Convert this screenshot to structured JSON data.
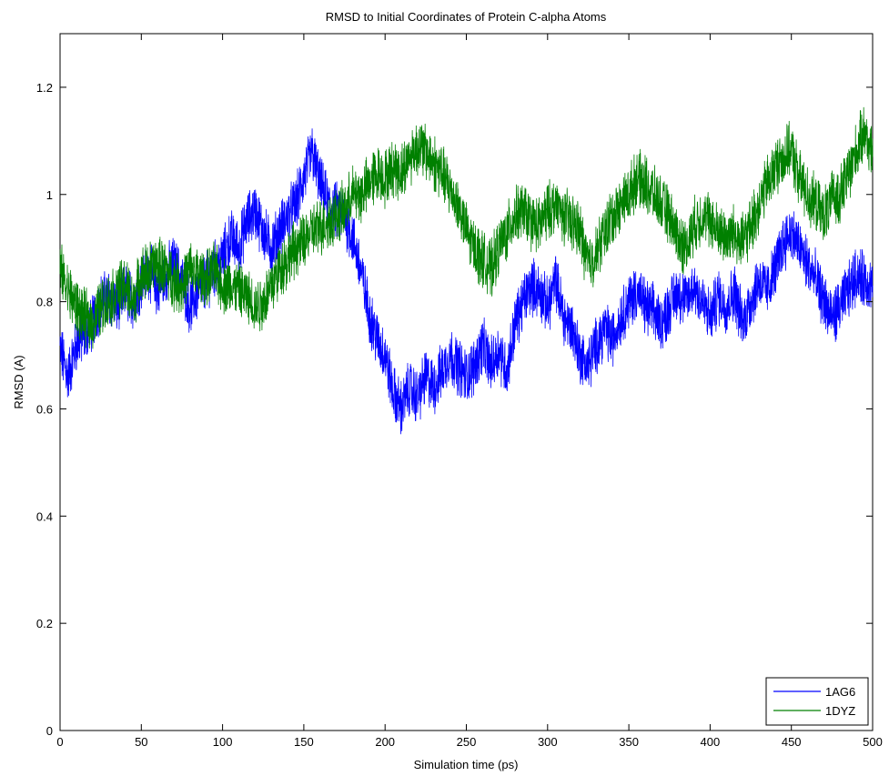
{
  "chart_data": {
    "type": "line",
    "title": "RMSD to Initial Coordinates of Protein C-alpha Atoms",
    "xlabel": "Simulation time (ps)",
    "ylabel": "RMSD (A)",
    "xlim": [
      0,
      500
    ],
    "ylim": [
      0,
      1.3
    ],
    "xticks": [
      0,
      50,
      100,
      150,
      200,
      250,
      300,
      350,
      400,
      450,
      500
    ],
    "yticks": [
      0,
      0.2,
      0.4,
      0.6,
      0.8,
      1,
      1.2
    ],
    "grid": false,
    "legend_position": "bottom-right",
    "series": [
      {
        "name": "1AG6",
        "color": "#0000ff",
        "x": [
          0,
          5,
          10,
          15,
          20,
          25,
          30,
          35,
          40,
          45,
          50,
          55,
          60,
          65,
          70,
          75,
          80,
          85,
          90,
          95,
          100,
          105,
          110,
          115,
          120,
          125,
          130,
          135,
          140,
          145,
          150,
          155,
          160,
          165,
          170,
          175,
          180,
          185,
          190,
          195,
          200,
          205,
          210,
          215,
          220,
          225,
          230,
          235,
          240,
          245,
          250,
          255,
          260,
          265,
          270,
          275,
          280,
          285,
          290,
          295,
          300,
          305,
          310,
          315,
          320,
          325,
          330,
          335,
          340,
          345,
          350,
          355,
          360,
          365,
          370,
          375,
          380,
          385,
          390,
          395,
          400,
          405,
          410,
          415,
          420,
          425,
          430,
          435,
          440,
          445,
          450,
          455,
          460,
          465,
          470,
          475,
          480,
          485,
          490,
          495,
          500
        ],
        "y": [
          0.71,
          0.66,
          0.72,
          0.74,
          0.76,
          0.8,
          0.81,
          0.79,
          0.82,
          0.8,
          0.84,
          0.86,
          0.82,
          0.85,
          0.87,
          0.84,
          0.79,
          0.82,
          0.84,
          0.86,
          0.88,
          0.92,
          0.9,
          0.95,
          0.97,
          0.93,
          0.9,
          0.93,
          0.96,
          0.98,
          1.03,
          1.08,
          1.02,
          0.98,
          0.97,
          0.96,
          0.92,
          0.86,
          0.78,
          0.73,
          0.7,
          0.63,
          0.6,
          0.64,
          0.62,
          0.66,
          0.64,
          0.67,
          0.7,
          0.68,
          0.66,
          0.68,
          0.72,
          0.68,
          0.71,
          0.67,
          0.76,
          0.8,
          0.83,
          0.82,
          0.79,
          0.84,
          0.77,
          0.75,
          0.7,
          0.68,
          0.72,
          0.75,
          0.73,
          0.77,
          0.8,
          0.82,
          0.79,
          0.78,
          0.76,
          0.79,
          0.82,
          0.8,
          0.83,
          0.8,
          0.77,
          0.81,
          0.79,
          0.82,
          0.76,
          0.8,
          0.84,
          0.82,
          0.86,
          0.91,
          0.93,
          0.9,
          0.87,
          0.84,
          0.8,
          0.77,
          0.79,
          0.82,
          0.85,
          0.84,
          0.83
        ]
      },
      {
        "name": "1DYZ",
        "color": "#008000",
        "x": [
          0,
          5,
          10,
          15,
          20,
          25,
          30,
          35,
          40,
          45,
          50,
          55,
          60,
          65,
          70,
          75,
          80,
          85,
          90,
          95,
          100,
          105,
          110,
          115,
          120,
          125,
          130,
          135,
          140,
          145,
          150,
          155,
          160,
          165,
          170,
          175,
          180,
          185,
          190,
          195,
          200,
          205,
          210,
          215,
          220,
          225,
          230,
          235,
          240,
          245,
          250,
          255,
          260,
          265,
          270,
          275,
          280,
          285,
          290,
          295,
          300,
          305,
          310,
          315,
          320,
          325,
          330,
          335,
          340,
          345,
          350,
          355,
          360,
          365,
          370,
          375,
          380,
          385,
          390,
          395,
          400,
          405,
          410,
          415,
          420,
          425,
          430,
          435,
          440,
          445,
          450,
          455,
          460,
          465,
          470,
          475,
          480,
          485,
          490,
          495,
          500
        ],
        "y": [
          0.86,
          0.82,
          0.79,
          0.77,
          0.76,
          0.79,
          0.8,
          0.82,
          0.83,
          0.8,
          0.85,
          0.86,
          0.87,
          0.86,
          0.84,
          0.83,
          0.86,
          0.85,
          0.84,
          0.86,
          0.83,
          0.83,
          0.82,
          0.81,
          0.79,
          0.8,
          0.83,
          0.86,
          0.88,
          0.9,
          0.91,
          0.93,
          0.94,
          0.95,
          0.96,
          0.97,
          1.0,
          1.0,
          1.02,
          1.04,
          1.03,
          1.05,
          1.04,
          1.07,
          1.09,
          1.08,
          1.06,
          1.04,
          1.01,
          0.98,
          0.93,
          0.9,
          0.88,
          0.86,
          0.9,
          0.93,
          0.96,
          0.97,
          0.95,
          0.94,
          0.97,
          0.98,
          0.96,
          0.95,
          0.93,
          0.87,
          0.89,
          0.93,
          0.96,
          0.98,
          1.0,
          1.03,
          1.02,
          1.0,
          0.98,
          0.96,
          0.92,
          0.9,
          0.94,
          0.96,
          0.95,
          0.93,
          0.92,
          0.93,
          0.91,
          0.94,
          0.98,
          1.02,
          1.05,
          1.07,
          1.08,
          1.03,
          1.0,
          0.98,
          0.96,
          0.99,
          1.0,
          1.04,
          1.08,
          1.12,
          1.07
        ]
      }
    ]
  }
}
